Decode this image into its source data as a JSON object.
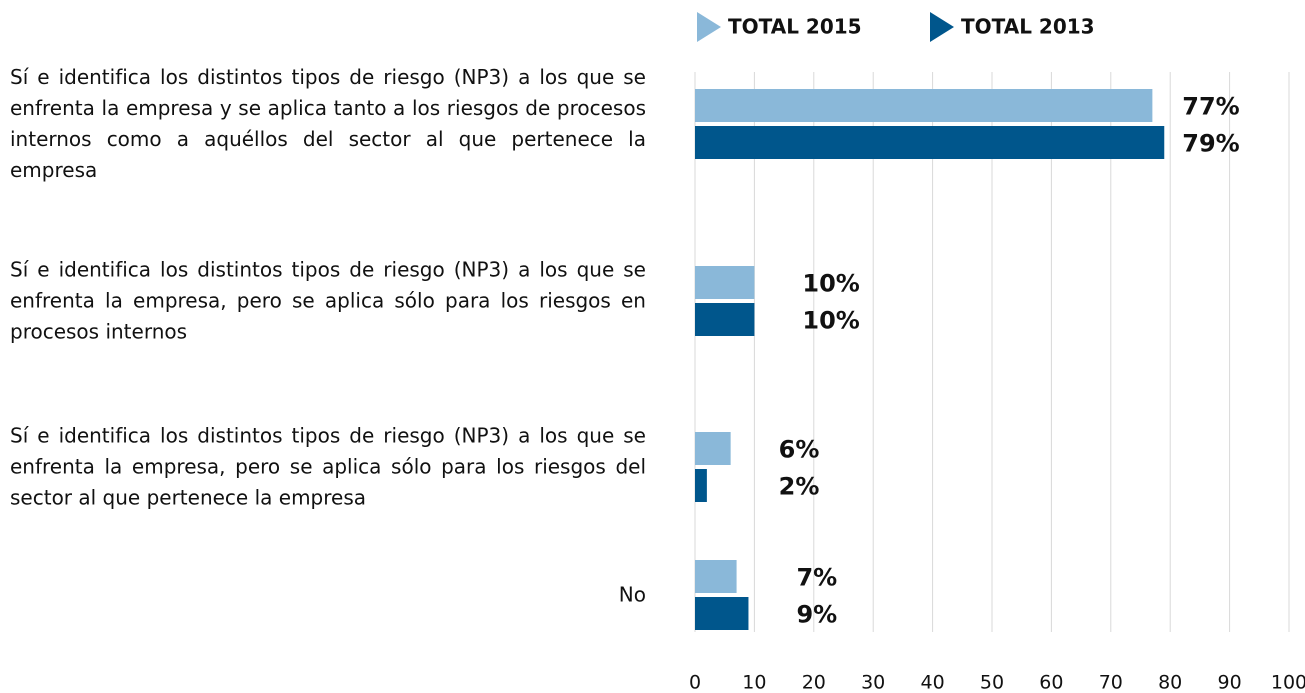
{
  "chart_data": {
    "type": "bar",
    "orientation": "horizontal",
    "categories": [
      "Sí e identifica los distintos tipos de riesgo (NP3) a los que se enfrenta la empresa y se aplica tanto a los riesgos de procesos internos como a aquéllos del sector al que pertenece la empresa",
      "Sí e identifica los distintos tipos de riesgo (NP3) a los que se enfrenta la empresa, pero se aplica sólo para los riesgos en procesos internos",
      "Sí e identifica los distintos tipos de riesgo (NP3) a los que se enfrenta la empresa, pero se aplica sólo para los riesgos del sector al que pertenece la empresa",
      "No"
    ],
    "series": [
      {
        "name": "TOTAL 2015",
        "color": "#8ab8d9",
        "values": [
          77,
          10,
          6,
          7
        ],
        "value_labels": [
          "77%",
          "10%",
          "6%",
          "7%"
        ]
      },
      {
        "name": "TOTAL 2013",
        "color": "#00568c",
        "values": [
          79,
          10,
          2,
          9
        ],
        "value_labels": [
          "79%",
          "10%",
          "2%",
          "9%"
        ]
      }
    ],
    "xlim": [
      0,
      100
    ],
    "xticks": [
      0,
      10,
      20,
      30,
      40,
      50,
      60,
      70,
      80,
      90,
      100
    ],
    "grid": true,
    "legend": "top"
  }
}
